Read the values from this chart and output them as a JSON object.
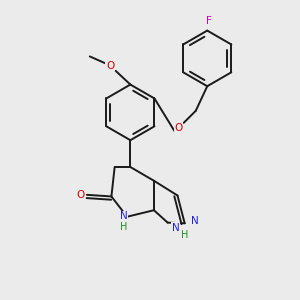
{
  "bg": "#ebebeb",
  "bond_color": "#1a1a1a",
  "lw": 1.4,
  "figsize": [
    3.0,
    3.0
  ],
  "dpi": 100,
  "colors": {
    "C": "#1a1a1a",
    "N": "#2222dd",
    "O": "#cc0000",
    "F": "#cc00cc",
    "H_green": "#228B22"
  },
  "fs": 7.5
}
